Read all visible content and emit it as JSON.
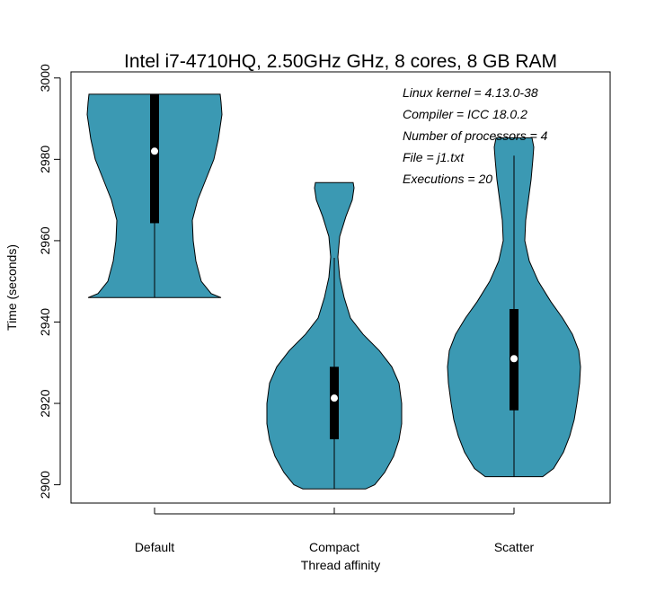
{
  "chart_data": {
    "type": "violin",
    "title": "Intel i7-4710HQ, 2.50GHz GHz, 8 cores, 8 GB RAM",
    "xlabel": "Thread affinity",
    "ylabel": "Time (seconds)",
    "ylim": [
      2895.5,
      3001.5
    ],
    "yticks": [
      2900,
      2920,
      2940,
      2960,
      2980,
      3000
    ],
    "categories": [
      "Default",
      "Compact",
      "Scatter"
    ],
    "fill_color": "#3b99b3",
    "annotations": [
      "Linux kernel = 4.13.0-38",
      "Compiler = ICC 18.0.2",
      "Number of processors = 4",
      "File = j1.txt",
      "Executions = 20"
    ],
    "series": [
      {
        "category": "Default",
        "min": 2946,
        "q1": 2964.3,
        "median": 2982,
        "q3": 2996,
        "max": 2996,
        "whisker_low": 2946,
        "whisker_high": 2996,
        "density": [
          [
            2946,
            74
          ],
          [
            2947,
            63
          ],
          [
            2950,
            52
          ],
          [
            2955,
            46
          ],
          [
            2960,
            43
          ],
          [
            2965,
            42
          ],
          [
            2970,
            48
          ],
          [
            2975,
            57
          ],
          [
            2980,
            66
          ],
          [
            2985,
            71
          ],
          [
            2988,
            73
          ],
          [
            2991,
            75
          ],
          [
            2994,
            74
          ],
          [
            2996,
            73
          ]
        ]
      },
      {
        "category": "Compact",
        "min": 2899,
        "q1": 2911.2,
        "median": 2921.3,
        "q3": 2929,
        "max": 2974.3,
        "whisker_low": 2899,
        "whisker_high": 2955.8,
        "density": [
          [
            2899,
            35
          ],
          [
            2900,
            45
          ],
          [
            2903,
            56
          ],
          [
            2907,
            66
          ],
          [
            2911,
            72
          ],
          [
            2915,
            75
          ],
          [
            2920,
            75
          ],
          [
            2925,
            72
          ],
          [
            2929,
            64
          ],
          [
            2933,
            50
          ],
          [
            2937,
            32
          ],
          [
            2941,
            18
          ],
          [
            2946,
            11
          ],
          [
            2951,
            6
          ],
          [
            2956,
            4
          ],
          [
            2961,
            6
          ],
          [
            2966,
            13
          ],
          [
            2970,
            20
          ],
          [
            2973,
            22
          ],
          [
            2974.3,
            21
          ]
        ]
      },
      {
        "category": "Scatter",
        "min": 2902,
        "q1": 2918.3,
        "median": 2931,
        "q3": 2943.2,
        "max": 2985.3,
        "whisker_low": 2902,
        "whisker_high": 2980.9,
        "density": [
          [
            2902,
            32
          ],
          [
            2904,
            44
          ],
          [
            2908,
            55
          ],
          [
            2912,
            62
          ],
          [
            2916,
            67
          ],
          [
            2920,
            70
          ],
          [
            2925,
            73
          ],
          [
            2929,
            74
          ],
          [
            2933,
            72
          ],
          [
            2937,
            65
          ],
          [
            2941,
            54
          ],
          [
            2945,
            41
          ],
          [
            2950,
            27
          ],
          [
            2955,
            17
          ],
          [
            2960,
            12
          ],
          [
            2965,
            13
          ],
          [
            2970,
            16
          ],
          [
            2975,
            19
          ],
          [
            2980,
            21
          ],
          [
            2983,
            22
          ],
          [
            2985.3,
            20
          ]
        ]
      }
    ]
  }
}
